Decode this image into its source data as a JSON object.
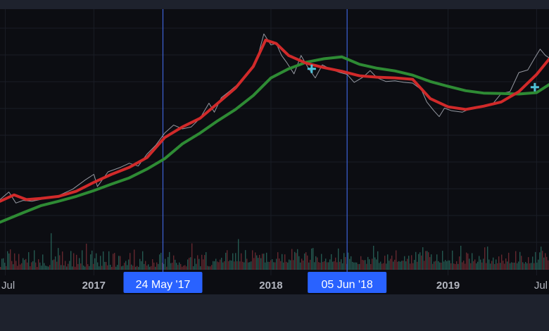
{
  "chart_data": {
    "type": "line",
    "title": "",
    "xlabel": "",
    "ylabel": "",
    "x_ticks": [
      {
        "label": "Jul",
        "t": 2016.5
      },
      {
        "label": "2017",
        "t": 2017.0
      },
      {
        "label": "2018",
        "t": 2018.0
      },
      {
        "label": "2019",
        "t": 2019.0
      },
      {
        "label": "Jul",
        "t": 2019.5
      }
    ],
    "x_range": [
      2016.47,
      2019.57
    ],
    "y_scale": "log",
    "y_range": [
      250,
      22000
    ],
    "grid": true,
    "legend": "none",
    "crosshair_markers": [
      {
        "label": "24 May '17",
        "t": 2017.39
      },
      {
        "label": "05 Jun '18",
        "t": 2018.43
      }
    ],
    "cross_markers": [
      {
        "t": 2018.23,
        "y": 8400,
        "type": "death-cross"
      },
      {
        "t": 2019.49,
        "y": 5800,
        "type": "golden-cross"
      }
    ],
    "series": [
      {
        "color": "#d12a2a",
        "points": [
          [
            2016.47,
            580
          ],
          [
            2016.55,
            660
          ],
          [
            2016.62,
            600
          ],
          [
            2016.7,
            615
          ],
          [
            2016.8,
            640
          ],
          [
            2016.9,
            710
          ],
          [
            2017.0,
            850
          ],
          [
            2017.1,
            1000
          ],
          [
            2017.2,
            1150
          ],
          [
            2017.3,
            1400
          ],
          [
            2017.4,
            2100
          ],
          [
            2017.5,
            2600
          ],
          [
            2017.6,
            3100
          ],
          [
            2017.7,
            4200
          ],
          [
            2017.8,
            5700
          ],
          [
            2017.9,
            8800
          ],
          [
            2017.97,
            15000
          ],
          [
            2018.03,
            14000
          ],
          [
            2018.1,
            11000
          ],
          [
            2018.2,
            9400
          ],
          [
            2018.3,
            8600
          ],
          [
            2018.4,
            8000
          ],
          [
            2018.5,
            7300
          ],
          [
            2018.6,
            7100
          ],
          [
            2018.7,
            7000
          ],
          [
            2018.8,
            6800
          ],
          [
            2018.9,
            4600
          ],
          [
            2019.0,
            3900
          ],
          [
            2019.1,
            3700
          ],
          [
            2019.2,
            3950
          ],
          [
            2019.3,
            4300
          ],
          [
            2019.4,
            5300
          ],
          [
            2019.5,
            7500
          ],
          [
            2019.57,
            10200
          ]
        ]
      },
      {
        "color": "#2e8b34",
        "points": [
          [
            2016.47,
            380
          ],
          [
            2016.6,
            460
          ],
          [
            2016.7,
            530
          ],
          [
            2016.8,
            580
          ],
          [
            2016.9,
            640
          ],
          [
            2017.0,
            720
          ],
          [
            2017.1,
            820
          ],
          [
            2017.2,
            930
          ],
          [
            2017.3,
            1110
          ],
          [
            2017.4,
            1370
          ],
          [
            2017.5,
            1850
          ],
          [
            2017.6,
            2300
          ],
          [
            2017.7,
            2950
          ],
          [
            2017.8,
            3700
          ],
          [
            2017.9,
            4900
          ],
          [
            2018.0,
            7000
          ],
          [
            2018.1,
            8400
          ],
          [
            2018.2,
            9600
          ],
          [
            2018.3,
            10300
          ],
          [
            2018.4,
            10700
          ],
          [
            2018.5,
            9200
          ],
          [
            2018.6,
            8500
          ],
          [
            2018.7,
            8050
          ],
          [
            2018.8,
            7400
          ],
          [
            2018.9,
            6500
          ],
          [
            2019.0,
            5900
          ],
          [
            2019.1,
            5400
          ],
          [
            2019.2,
            5150
          ],
          [
            2019.3,
            5100
          ],
          [
            2019.4,
            5050
          ],
          [
            2019.5,
            5200
          ],
          [
            2019.57,
            6100
          ]
        ]
      },
      {
        "color": "#9598a1",
        "points": [
          [
            2016.47,
            600
          ],
          [
            2016.52,
            700
          ],
          [
            2016.56,
            560
          ],
          [
            2016.6,
            590
          ],
          [
            2016.65,
            580
          ],
          [
            2016.72,
            610
          ],
          [
            2016.8,
            650
          ],
          [
            2016.88,
            740
          ],
          [
            2016.95,
            890
          ],
          [
            2017.0,
            1000
          ],
          [
            2017.02,
            780
          ],
          [
            2017.08,
            1050
          ],
          [
            2017.15,
            1150
          ],
          [
            2017.2,
            1250
          ],
          [
            2017.25,
            1180
          ],
          [
            2017.3,
            1500
          ],
          [
            2017.35,
            1800
          ],
          [
            2017.4,
            2300
          ],
          [
            2017.45,
            2700
          ],
          [
            2017.5,
            2500
          ],
          [
            2017.55,
            2600
          ],
          [
            2017.6,
            3100
          ],
          [
            2017.65,
            4200
          ],
          [
            2017.68,
            3500
          ],
          [
            2017.72,
            4700
          ],
          [
            2017.77,
            5400
          ],
          [
            2017.82,
            6300
          ],
          [
            2017.87,
            7900
          ],
          [
            2017.92,
            10000
          ],
          [
            2017.96,
            17000
          ],
          [
            2018.0,
            13600
          ],
          [
            2018.03,
            14000
          ],
          [
            2018.06,
            11000
          ],
          [
            2018.09,
            9500
          ],
          [
            2018.13,
            7600
          ],
          [
            2018.17,
            11000
          ],
          [
            2018.21,
            8600
          ],
          [
            2018.25,
            7000
          ],
          [
            2018.29,
            9100
          ],
          [
            2018.34,
            8300
          ],
          [
            2018.39,
            7800
          ],
          [
            2018.43,
            7500
          ],
          [
            2018.47,
            6400
          ],
          [
            2018.52,
            7100
          ],
          [
            2018.56,
            8100
          ],
          [
            2018.6,
            7000
          ],
          [
            2018.65,
            6500
          ],
          [
            2018.7,
            6600
          ],
          [
            2018.75,
            6400
          ],
          [
            2018.8,
            6300
          ],
          [
            2018.85,
            5500
          ],
          [
            2018.88,
            4300
          ],
          [
            2018.92,
            3600
          ],
          [
            2018.95,
            3200
          ],
          [
            2018.98,
            3800
          ],
          [
            2019.02,
            3600
          ],
          [
            2019.08,
            3500
          ],
          [
            2019.15,
            3900
          ],
          [
            2019.2,
            4000
          ],
          [
            2019.25,
            4100
          ],
          [
            2019.3,
            5100
          ],
          [
            2019.35,
            5300
          ],
          [
            2019.4,
            7800
          ],
          [
            2019.45,
            8200
          ],
          [
            2019.49,
            10500
          ],
          [
            2019.52,
            12500
          ],
          [
            2019.55,
            11000
          ],
          [
            2019.57,
            10500
          ]
        ]
      }
    ],
    "volume_scale_max": 100
  }
}
